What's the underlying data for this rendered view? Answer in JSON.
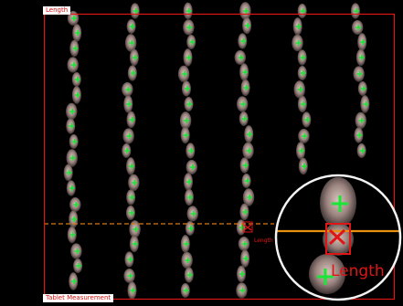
{
  "overlay": {
    "top_label": "Length",
    "bottom_label": "Tablet Measurement",
    "small_marker_label": "Length",
    "zoom_label": "Length"
  },
  "colors": {
    "background": "#000000",
    "roi_border": "#e01515",
    "centroid_marker": "#19e635",
    "selected_marker": "#e01515",
    "scan_line": "#d97a10",
    "zoom_ring": "#ffffff",
    "grain_fill": "#a8918a"
  },
  "icons": {
    "centroid": "green-cross-icon",
    "selected": "red-x-icon"
  }
}
